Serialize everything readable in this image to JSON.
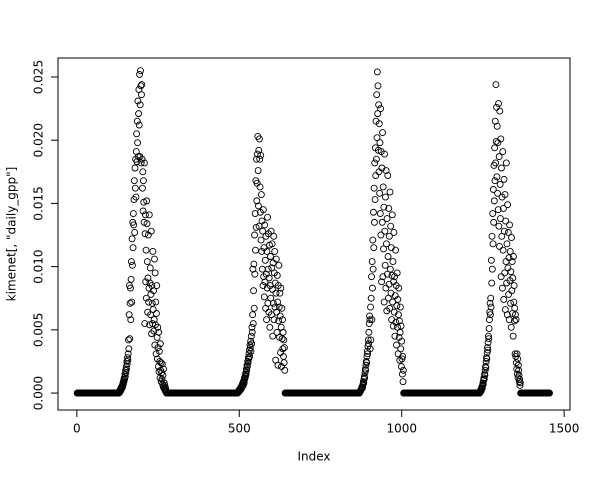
{
  "chart_data": {
    "type": "scatter",
    "xlabel": "Index",
    "ylabel": "kimenet[, \"daily_gpp\"]",
    "xlim": [
      -58,
      1518
    ],
    "ylim": [
      -0.00134,
      0.0265
    ],
    "xticks": [
      0,
      500,
      1000,
      1500
    ],
    "yticks": [
      {
        "value": 0,
        "label": "0.000"
      },
      0.005,
      {
        "value": 0.01,
        "label": "0.010"
      },
      0.015,
      {
        "value": 0.02,
        "label": "0.020"
      },
      0.025
    ],
    "color": "#000000",
    "values": [
      0,
      0,
      0,
      0,
      0,
      0,
      0,
      0,
      0,
      0,
      0,
      0,
      0,
      0,
      0,
      0,
      0,
      0,
      0,
      0,
      0,
      0,
      0,
      0,
      0,
      0,
      0,
      0,
      0,
      0,
      0,
      0,
      0,
      0,
      0,
      0,
      0,
      0,
      0,
      0,
      0,
      0,
      0,
      0,
      0,
      0,
      0,
      0,
      0,
      0,
      0,
      0,
      0,
      0,
      0,
      0,
      0,
      0,
      0,
      0,
      0,
      0,
      0,
      0,
      0,
      0,
      0,
      0,
      0,
      0,
      0,
      0,
      0,
      0,
      0,
      0,
      0,
      0,
      0,
      0,
      0,
      0,
      0,
      0,
      0,
      0,
      0,
      0,
      0,
      0,
      0,
      0,
      0,
      0,
      0,
      0,
      0,
      0,
      0,
      0,
      0,
      0,
      0,
      0,
      0,
      0,
      0,
      0,
      0,
      0,
      0,
      0,
      0,
      0,
      0,
      0,
      0,
      0,
      0,
      0,
      0,
      0,
      0,
      0,
      0,
      0,
      0,
      0,
      0,
      0,
      0.0001,
      0.0002,
      0.0001,
      0.0003,
      0.0002,
      0.0004,
      0.0003,
      0.0005,
      0.0004,
      0.0006,
      0.0005,
      0.0008,
      0.0007,
      0.001,
      0.0009,
      0.0012,
      0.0011,
      0.0015,
      0.0013,
      0.0018,
      0.0016,
      0.0021,
      0.0019,
      0.0025,
      0.0023,
      0.0028,
      0.0026,
      0.0031,
      0.0042,
      0.0035,
      0.0062,
      0.0085,
      0.0043,
      0.0071,
      0.0083,
      0.0058,
      0.009,
      0.0104,
      0.0072,
      0.0122,
      0.0101,
      0.0135,
      0.0115,
      0.0142,
      0.0133,
      0.0153,
      0.0168,
      0.0127,
      0.0178,
      0.0162,
      0.0185,
      0.0155,
      0.0191,
      0.0205,
      0.0183,
      0.0215,
      0.0198,
      0.0231,
      0.0187,
      0.0221,
      0.024,
      0.0212,
      0.0252,
      0.0187,
      0.0228,
      0.0255,
      0.0243,
      0.0182,
      0.0236,
      0.0244,
      0.0185,
      0.0162,
      0.0175,
      0.0144,
      0.0168,
      0.0151,
      0.0135,
      0.0182,
      0.0055,
      0.0126,
      0.0141,
      0.0088,
      0.0113,
      0.0075,
      0.0152,
      0.0134,
      0.0104,
      0.0064,
      0.0091,
      0.0125,
      0.0072,
      0.0083,
      0.0141,
      0.0054,
      0.0087,
      0.0099,
      0.0062,
      0.0078,
      0.0128,
      0.0047,
      0.0085,
      0.0071,
      0.0055,
      0.0112,
      0.0066,
      0.0081,
      0.0049,
      0.0058,
      0.0106,
      0.0038,
      0.0095,
      0.0054,
      0.0072,
      0.0031,
      0.0063,
      0.0085,
      0.0044,
      0.0027,
      0.0052,
      0.0036,
      0.0021,
      0.0048,
      0.0017,
      0.0033,
      0.0025,
      0.0012,
      0.0039,
      0.0018,
      0.0024,
      0.0009,
      0.0016,
      0.0011,
      0.0023,
      0.0007,
      0.0014,
      0.0005,
      0.0019,
      0.0004,
      0.0008,
      0.0003,
      0.0006,
      0.0002,
      0.0004,
      0.0001,
      0.0002,
      0,
      0,
      0,
      0,
      0,
      0,
      0,
      0,
      0,
      0,
      0,
      0,
      0,
      0,
      0,
      0,
      0,
      0,
      0,
      0,
      0,
      0,
      0,
      0,
      0,
      0,
      0,
      0,
      0,
      0,
      0,
      0,
      0,
      0,
      0,
      0,
      0,
      0,
      0,
      0,
      0,
      0,
      0,
      0,
      0,
      0,
      0,
      0,
      0,
      0,
      0,
      0,
      0,
      0,
      0,
      0,
      0,
      0,
      0,
      0,
      0,
      0,
      0,
      0,
      0,
      0,
      0,
      0,
      0,
      0,
      0,
      0,
      0,
      0,
      0,
      0,
      0,
      0,
      0,
      0,
      0,
      0,
      0,
      0,
      0,
      0,
      0,
      0,
      0,
      0,
      0,
      0,
      0,
      0,
      0,
      0,
      0,
      0,
      0,
      0,
      0,
      0,
      0,
      0,
      0,
      0,
      0,
      0,
      0,
      0,
      0,
      0,
      0,
      0,
      0,
      0,
      0,
      0,
      0,
      0,
      0,
      0,
      0,
      0,
      0,
      0,
      0,
      0,
      0,
      0,
      0,
      0,
      0,
      0,
      0,
      0,
      0,
      0,
      0,
      0,
      0,
      0,
      0,
      0,
      0,
      0,
      0,
      0,
      0,
      0,
      0,
      0,
      0,
      0,
      0,
      0,
      0,
      0,
      0,
      0,
      0,
      0,
      0,
      0,
      0,
      0,
      0,
      0,
      0,
      0,
      0,
      0,
      0,
      0,
      0,
      0,
      0,
      0,
      0,
      0,
      0,
      0,
      0,
      0,
      0,
      0,
      0,
      0,
      0,
      0,
      0,
      0,
      0,
      0,
      0,
      0,
      0,
      0,
      0,
      0,
      0,
      0,
      0,
      0,
      0,
      0,
      0,
      0,
      0,
      0,
      0,
      0,
      0,
      0,
      0,
      0,
      0,
      0,
      0,
      0,
      0.0001,
      0.0001,
      0.0002,
      0.0001,
      0.0002,
      0.0003,
      0.0002,
      0.0003,
      0.0004,
      0.0003,
      0.0005,
      0.0004,
      0.0006,
      0.0005,
      0.0007,
      0.0008,
      0.0006,
      0.0009,
      0.001,
      0.0008,
      0.0012,
      0.0011,
      0.0014,
      0.0013,
      0.0016,
      0.0015,
      0.0019,
      0.0018,
      0.0022,
      0.0021,
      0.0025,
      0.0024,
      0.0028,
      0.0027,
      0.0031,
      0.0034,
      0.0029,
      0.0038,
      0.0036,
      0.0041,
      0.0033,
      0.0045,
      0.0039,
      0.0052,
      0.0048,
      0.0062,
      0.0098,
      0.0055,
      0.0081,
      0.0102,
      0.0067,
      0.0125,
      0.0094,
      0.0142,
      0.0113,
      0.0168,
      0.0131,
      0.0185,
      0.0152,
      0.0166,
      0.0189,
      0.0203,
      0.0176,
      0.0148,
      0.0192,
      0.0132,
      0.0201,
      0.0185,
      0.0163,
      0.0143,
      0.0188,
      0.0121,
      0.0157,
      0.0112,
      0.0136,
      0.0098,
      0.0128,
      0.0085,
      0.0145,
      0.0092,
      0.0115,
      0.0076,
      0.0133,
      0.0088,
      0.0105,
      0.0067,
      0.0124,
      0.0094,
      0.0058,
      0.0112,
      0.0083,
      0.0139,
      0.0071,
      0.0098,
      0.0126,
      0.0064,
      0.0091,
      0.0117,
      0.0052,
      0.0085,
      0.0108,
      0.0075,
      0.0128,
      0.0062,
      0.0099,
      0.0118,
      0.0082,
      0.0045,
      0.0103,
      0.0071,
      0.0124,
      0.0058,
      0.0095,
      0.0112,
      0.0068,
      0.0087,
      0.0026,
      0.0079,
      0.0106,
      0.0064,
      0.0048,
      0.0093,
      0.0072,
      0.0022,
      0.0085,
      0.0057,
      0.0101,
      0.0068,
      0.0044,
      0.0079,
      0.0061,
      0.0032,
      0.0083,
      0.0052,
      0.0021,
      0.0067,
      0.0043,
      0.0058,
      0.0035,
      0.0048,
      0.0029,
      0.0042,
      0.0024,
      0.0036,
      0.0018,
      0,
      0,
      0,
      0,
      0,
      0,
      0,
      0,
      0,
      0,
      0,
      0,
      0,
      0,
      0,
      0,
      0,
      0,
      0,
      0,
      0,
      0,
      0,
      0,
      0,
      0,
      0,
      0,
      0,
      0,
      0,
      0,
      0,
      0,
      0,
      0,
      0,
      0,
      0,
      0,
      0,
      0,
      0,
      0,
      0,
      0,
      0,
      0,
      0,
      0,
      0,
      0,
      0,
      0,
      0,
      0,
      0,
      0,
      0,
      0,
      0,
      0,
      0,
      0,
      0,
      0,
      0,
      0,
      0,
      0,
      0,
      0,
      0,
      0,
      0,
      0,
      0,
      0,
      0,
      0,
      0,
      0,
      0,
      0,
      0,
      0,
      0,
      0,
      0,
      0,
      0,
      0,
      0,
      0,
      0,
      0,
      0,
      0,
      0,
      0,
      0,
      0,
      0,
      0,
      0,
      0,
      0,
      0,
      0,
      0,
      0,
      0,
      0,
      0,
      0,
      0,
      0,
      0,
      0,
      0,
      0,
      0,
      0,
      0,
      0,
      0,
      0,
      0,
      0,
      0,
      0,
      0,
      0,
      0,
      0,
      0,
      0,
      0,
      0,
      0,
      0,
      0,
      0,
      0,
      0,
      0,
      0,
      0,
      0,
      0,
      0,
      0,
      0,
      0,
      0,
      0,
      0,
      0,
      0,
      0,
      0,
      0,
      0,
      0,
      0,
      0,
      0,
      0,
      0,
      0,
      0,
      0,
      0,
      0,
      0,
      0,
      0,
      0,
      0,
      0,
      0,
      0,
      0,
      0,
      0,
      0,
      0,
      0,
      0,
      0,
      0,
      0,
      0,
      0,
      0,
      0,
      0,
      0,
      0,
      0,
      0,
      0,
      0,
      0,
      0,
      0,
      0,
      0,
      0,
      0,
      0,
      0,
      0,
      0,
      0,
      0,
      0,
      0,
      0,
      0,
      0,
      0,
      0,
      0,
      0,
      0,
      0,
      0,
      0,
      0,
      0.0001,
      0.0001,
      0.0002,
      0.0002,
      0.0003,
      0.0003,
      0.0004,
      0.0005,
      0.0004,
      0.0006,
      0.0007,
      0.0009,
      0.0008,
      0.0011,
      0.0013,
      0.0012,
      0.0016,
      0.0019,
      0.0018,
      0.0022,
      0.0025,
      0.0024,
      0.0029,
      0.0033,
      0.0031,
      0.0037,
      0.0042,
      0.0039,
      0.0048,
      0.0055,
      0.0061,
      0.0058,
      0.0035,
      0.0068,
      0.0042,
      0.0075,
      0.0092,
      0.0058,
      0.0104,
      0.0083,
      0.0121,
      0.0098,
      0.0143,
      0.0115,
      0.0162,
      0.0135,
      0.0182,
      0.0153,
      0.0194,
      0.0172,
      0.0215,
      0.0185,
      0.0236,
      0.0202,
      0.0254,
      0.0221,
      0.0243,
      0.0192,
      0.0228,
      0.0175,
      0.0213,
      0.0158,
      0.0198,
      0.0142,
      0.0225,
      0.0125,
      0.0191,
      0.0088,
      0.0178,
      0.0135,
      0.0206,
      0.0092,
      0.0163,
      0.0114,
      0.0147,
      0.0072,
      0.0189,
      0.0128,
      0.0101,
      0.0155,
      0.0083,
      0.0176,
      0.0118,
      0.0065,
      0.0138,
      0.0094,
      0.0172,
      0.0108,
      0.0075,
      0.0146,
      0.0086,
      0.0124,
      0.0067,
      0.0159,
      0.0098,
      0.0132,
      0.0079,
      0.0115,
      0.0058,
      0.0093,
      0.0141,
      0.0072,
      0.0104,
      0.0053,
      0.0088,
      0.0127,
      0.0064,
      0.0092,
      0.0045,
      0.0077,
      0.0113,
      0.0056,
      0.0085,
      0.0038,
      0.0069,
      0.0095,
      0.0052,
      0.0074,
      0.0031,
      0.0062,
      0.0083,
      0.0044,
      0.0057,
      0.0026,
      0.0048,
      0.0068,
      0.0035,
      0.0053,
      0.0021,
      0.0041,
      0.0027,
      0.0015,
      0.0029,
      0.0009,
      0.0018,
      0,
      0,
      0,
      0,
      0,
      0,
      0,
      0,
      0,
      0,
      0,
      0,
      0,
      0,
      0,
      0,
      0,
      0,
      0,
      0,
      0,
      0,
      0,
      0,
      0,
      0,
      0,
      0,
      0,
      0,
      0,
      0,
      0,
      0,
      0,
      0,
      0,
      0,
      0,
      0,
      0,
      0,
      0,
      0,
      0,
      0,
      0,
      0,
      0,
      0,
      0,
      0,
      0,
      0,
      0,
      0,
      0,
      0,
      0,
      0,
      0,
      0,
      0,
      0,
      0,
      0,
      0,
      0,
      0,
      0,
      0,
      0,
      0,
      0,
      0,
      0,
      0,
      0,
      0,
      0,
      0,
      0,
      0,
      0,
      0,
      0,
      0,
      0,
      0,
      0,
      0,
      0,
      0,
      0,
      0,
      0,
      0,
      0,
      0,
      0,
      0,
      0,
      0,
      0,
      0,
      0,
      0,
      0,
      0,
      0,
      0,
      0,
      0,
      0,
      0,
      0,
      0,
      0,
      0,
      0,
      0,
      0,
      0,
      0,
      0,
      0,
      0,
      0,
      0,
      0,
      0,
      0,
      0,
      0,
      0,
      0,
      0,
      0,
      0,
      0,
      0,
      0,
      0,
      0,
      0,
      0,
      0,
      0,
      0,
      0,
      0,
      0,
      0,
      0,
      0,
      0,
      0,
      0,
      0,
      0,
      0,
      0,
      0,
      0,
      0,
      0,
      0,
      0,
      0,
      0,
      0,
      0,
      0,
      0,
      0,
      0,
      0,
      0,
      0,
      0,
      0,
      0,
      0,
      0,
      0,
      0,
      0,
      0,
      0,
      0,
      0,
      0,
      0,
      0,
      0,
      0,
      0,
      0,
      0,
      0,
      0,
      0,
      0,
      0,
      0,
      0,
      0,
      0,
      0,
      0,
      0,
      0,
      0,
      0,
      0,
      0,
      0,
      0,
      0,
      0,
      0,
      0,
      0,
      0,
      0,
      0,
      0,
      0,
      0,
      0,
      0,
      0,
      0,
      0,
      0,
      0.0001,
      0.0002,
      0.0001,
      0.0003,
      0.0002,
      0.0004,
      0.0005,
      0.0004,
      0.0006,
      0.0008,
      0.0007,
      0.001,
      0.0012,
      0.0011,
      0.0015,
      0.0014,
      0.0018,
      0.0021,
      0.002,
      0.0025,
      0.0028,
      0.0027,
      0.0032,
      0.0036,
      0.0034,
      0.004,
      0.0045,
      0.0043,
      0.0051,
      0.0058,
      0.0064,
      0.0071,
      0.0062,
      0.0075,
      0.0068,
      0.0105,
      0.0087,
      0.0124,
      0.0098,
      0.0142,
      0.0118,
      0.0161,
      0.0135,
      0.018,
      0.0152,
      0.0194,
      0.0168,
      0.0215,
      0.0182,
      0.0244,
      0.0199,
      0.0226,
      0.0171,
      0.0211,
      0.0158,
      0.0198,
      0.0145,
      0.0229,
      0.0132,
      0.0187,
      0.0116,
      0.0223,
      0.0165,
      0.0138,
      0.0201,
      0.0092,
      0.0178,
      0.0124,
      0.0155,
      0.0083,
      0.0191,
      0.0113,
      0.0146,
      0.0074,
      0.0169,
      0.0128,
      0.0095,
      0.0157,
      0.0066,
      0.0136,
      0.0104,
      0.0182,
      0.0087,
      0.0118,
      0.0062,
      0.0149,
      0.0099,
      0.0127,
      0.0078,
      0.0107,
      0.0058,
      0.0133,
      0.0089,
      0.0112,
      0.0071,
      0.0096,
      0.0052,
      0.0123,
      0.0081,
      0.0104,
      0.0063,
      0.0091,
      0.0045,
      0.0108,
      0.0072,
      0.0085,
      0.0057,
      0.0067,
      0.0031,
      0.0062,
      0.0029,
      0.0058,
      0.0024,
      0.0019,
      0.0031,
      0.0015,
      0.0027,
      0.0012,
      0.0022,
      0.0018,
      0.0014,
      0.0009,
      0.0011,
      0.0006,
      0.0008,
      0,
      0,
      0,
      0,
      0,
      0,
      0,
      0,
      0,
      0,
      0,
      0,
      0,
      0,
      0,
      0,
      0,
      0,
      0,
      0,
      0,
      0,
      0,
      0,
      0,
      0,
      0,
      0,
      0,
      0,
      0,
      0,
      0,
      0,
      0,
      0,
      0,
      0,
      0,
      0,
      0,
      0,
      0,
      0,
      0,
      0,
      0,
      0,
      0,
      0,
      0,
      0,
      0,
      0,
      0,
      0,
      0,
      0,
      0,
      0,
      0,
      0,
      0,
      0,
      0,
      0,
      0,
      0,
      0,
      0,
      0,
      0,
      0,
      0,
      0,
      0,
      0,
      0,
      0,
      0,
      0,
      0,
      0,
      0,
      0,
      0,
      0,
      0,
      0,
      0
    ]
  }
}
